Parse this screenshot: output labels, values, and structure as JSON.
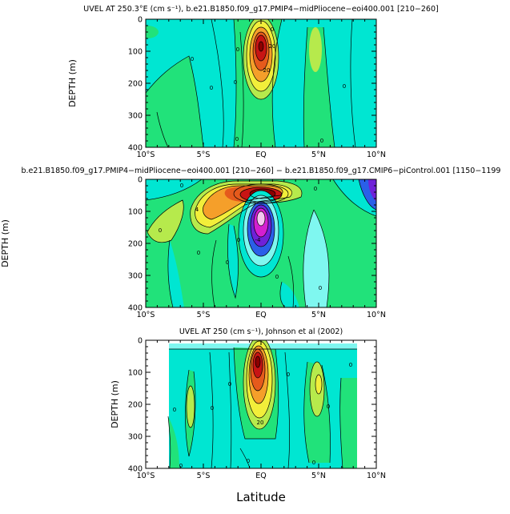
{
  "colors": {
    "background": "#00e6d2",
    "light_cyan": "#7ff7f0",
    "green": "#21e27a",
    "yellow_green": "#b6ea4c",
    "yellow": "#f2ee3a",
    "orange": "#f59f2a",
    "dark_orange": "#e55a1c",
    "red": "#c81414",
    "dark_red": "#8c0000",
    "blue": "#2a5fe8",
    "violet": "#6f21d8",
    "magenta": "#d41fd0",
    "pink": "#f5c6f0",
    "contour": "#000000"
  },
  "chart_data": [
    {
      "type": "heatmap",
      "title": "UVEL AT 250.3°E (cm s⁻¹), b.e21.B1850.f09_g17.PMIP4−midPliocene−eoi400.001 [210−260]",
      "xlabel": "",
      "ylabel": "DEPTH (m)",
      "x_ticks": [
        "10°S",
        "5°S",
        "EQ",
        "5°N",
        "10°N"
      ],
      "y_ticks": [
        "0",
        "100",
        "200",
        "300",
        "400"
      ],
      "xlim": [
        -10,
        10
      ],
      "ylim": [
        400,
        0
      ],
      "contour_labels": [
        "0",
        "0",
        "0",
        "0",
        "0",
        "0",
        "0",
        "20",
        "20",
        "0"
      ]
    },
    {
      "type": "heatmap",
      "title": "b.e21.B1850.f09_g17.PMIP4−midPliocene−eoi400.001 [210−260] − b.e21.B1850.f09_g17.CMIP6−piControl.001 [1150−1199",
      "xlabel": "",
      "ylabel": "DEPTH (m)",
      "x_ticks": [
        "10°S",
        "5°S",
        "EQ",
        "5°N",
        "10°N"
      ],
      "y_ticks": [
        "0",
        "100",
        "200",
        "300",
        "400"
      ],
      "xlim": [
        -10,
        10
      ],
      "ylim": [
        400,
        0
      ],
      "contour_labels": [
        "0",
        "0",
        "0",
        "0",
        "0",
        "0",
        "4",
        "-4",
        "0",
        "0"
      ]
    },
    {
      "type": "heatmap",
      "title": "UVEL AT 250 (cm s⁻¹), Johnson et al (2002)",
      "xlabel": "Latitude",
      "ylabel": "DEPTH (m)",
      "x_ticks": [
        "10°S",
        "5°S",
        "EQ",
        "5°N",
        "10°N"
      ],
      "y_ticks": [
        "0",
        "100",
        "200",
        "300",
        "400"
      ],
      "xlim": [
        -10,
        10
      ],
      "ylim": [
        400,
        0
      ],
      "contour_labels": [
        "0",
        "0",
        "0",
        "0",
        "0",
        "0",
        "0",
        "20",
        "0",
        "0"
      ]
    }
  ]
}
